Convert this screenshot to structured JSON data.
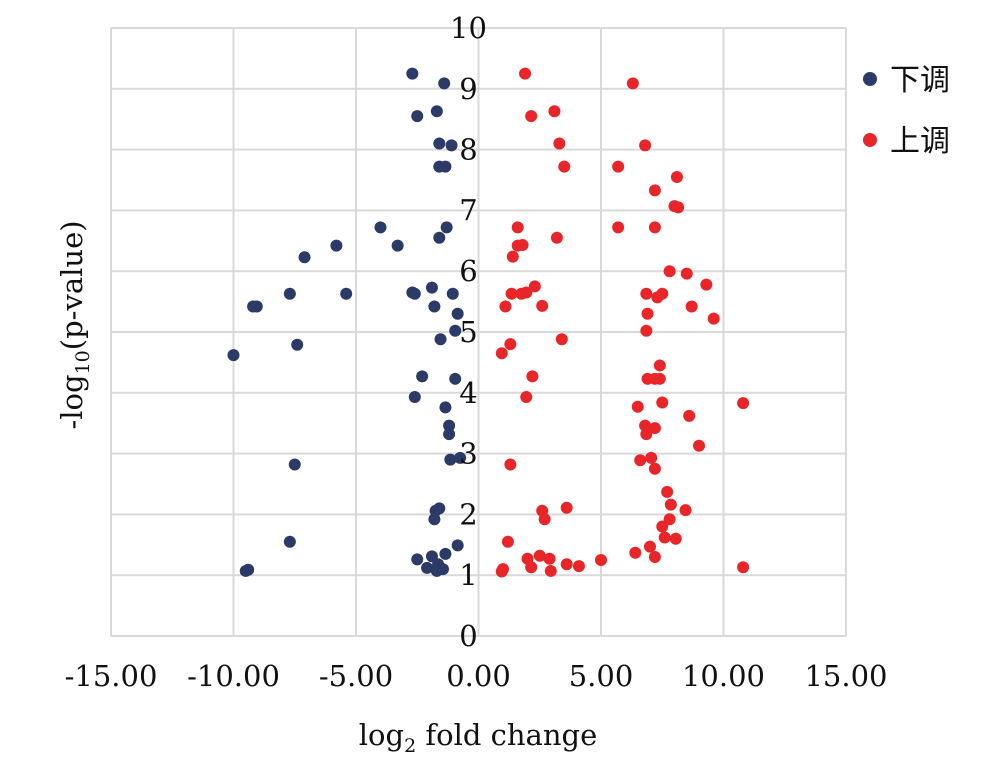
{
  "chart_data": {
    "type": "scatter",
    "title": "",
    "xlabel_main": "log",
    "xlabel_sub": "2",
    "xlabel_rest": " fold change",
    "ylabel_main": "-log",
    "ylabel_sub": "10",
    "ylabel_rest": "(p-value)",
    "xlim": [
      -15,
      15
    ],
    "ylim": [
      0,
      10
    ],
    "xticks": [
      "-15.00",
      "-10.00",
      "-5.00",
      "0.00",
      "5.00",
      "10.00",
      "15.00"
    ],
    "xtick_values": [
      -15,
      -10,
      -5,
      0,
      5,
      10,
      15
    ],
    "yticks": [
      "0",
      "1",
      "2",
      "3",
      "4",
      "5",
      "6",
      "7",
      "8",
      "9",
      "10"
    ],
    "ytick_values": [
      0,
      1,
      2,
      3,
      4,
      5,
      6,
      7,
      8,
      9,
      10
    ],
    "grid": true,
    "legend_position": "right",
    "series": [
      {
        "name": "下调",
        "color": "#2b3a67",
        "points": [
          [
            -2.7,
            9.25
          ],
          [
            -1.4,
            9.09
          ],
          [
            -1.7,
            8.63
          ],
          [
            -2.5,
            8.55
          ],
          [
            -1.6,
            8.1
          ],
          [
            -1.1,
            8.07
          ],
          [
            -1.6,
            7.72
          ],
          [
            -1.35,
            7.72
          ],
          [
            -4.0,
            6.72
          ],
          [
            -1.3,
            6.72
          ],
          [
            -1.6,
            6.55
          ],
          [
            -5.8,
            6.42
          ],
          [
            -3.3,
            6.42
          ],
          [
            -7.1,
            6.23
          ],
          [
            -7.7,
            5.63
          ],
          [
            -5.4,
            5.63
          ],
          [
            -2.7,
            5.65
          ],
          [
            -2.6,
            5.63
          ],
          [
            -1.9,
            5.73
          ],
          [
            -1.05,
            5.63
          ],
          [
            -9.2,
            5.42
          ],
          [
            -9.05,
            5.42
          ],
          [
            -1.8,
            5.42
          ],
          [
            -0.85,
            5.3
          ],
          [
            -0.95,
            5.02
          ],
          [
            -1.55,
            4.88
          ],
          [
            -10.0,
            4.62
          ],
          [
            -7.4,
            4.79
          ],
          [
            -2.3,
            4.27
          ],
          [
            -0.95,
            4.23
          ],
          [
            -2.6,
            3.93
          ],
          [
            -1.35,
            3.76
          ],
          [
            -1.2,
            3.46
          ],
          [
            -1.2,
            3.32
          ],
          [
            -1.15,
            2.9
          ],
          [
            -0.75,
            2.93
          ],
          [
            -7.5,
            2.82
          ],
          [
            -1.75,
            2.06
          ],
          [
            -1.6,
            2.1
          ],
          [
            -1.8,
            1.92
          ],
          [
            -7.7,
            1.55
          ],
          [
            -0.85,
            1.49
          ],
          [
            -2.5,
            1.26
          ],
          [
            -1.9,
            1.31
          ],
          [
            -1.35,
            1.35
          ],
          [
            -1.65,
            1.18
          ],
          [
            -2.1,
            1.12
          ],
          [
            -1.45,
            1.1
          ],
          [
            -1.7,
            1.07
          ],
          [
            -9.4,
            1.09
          ],
          [
            -9.5,
            1.07
          ]
        ]
      },
      {
        "name": "上调",
        "color": "#e8262a",
        "points": [
          [
            1.9,
            9.25
          ],
          [
            6.3,
            9.09
          ],
          [
            3.1,
            8.63
          ],
          [
            2.15,
            8.55
          ],
          [
            3.3,
            8.1
          ],
          [
            6.8,
            8.07
          ],
          [
            3.5,
            7.72
          ],
          [
            5.7,
            7.72
          ],
          [
            8.1,
            7.55
          ],
          [
            7.2,
            7.33
          ],
          [
            8.0,
            7.07
          ],
          [
            8.15,
            7.05
          ],
          [
            5.7,
            6.72
          ],
          [
            1.6,
            6.72
          ],
          [
            7.2,
            6.72
          ],
          [
            3.2,
            6.55
          ],
          [
            1.6,
            6.42
          ],
          [
            1.8,
            6.43
          ],
          [
            1.4,
            6.24
          ],
          [
            7.8,
            6.0
          ],
          [
            8.5,
            5.96
          ],
          [
            9.3,
            5.78
          ],
          [
            2.3,
            5.75
          ],
          [
            1.35,
            5.63
          ],
          [
            1.75,
            5.63
          ],
          [
            1.95,
            5.65
          ],
          [
            6.85,
            5.63
          ],
          [
            7.5,
            5.63
          ],
          [
            7.3,
            5.57
          ],
          [
            1.1,
            5.42
          ],
          [
            2.6,
            5.43
          ],
          [
            8.7,
            5.42
          ],
          [
            6.9,
            5.3
          ],
          [
            9.6,
            5.22
          ],
          [
            6.85,
            5.02
          ],
          [
            3.4,
            4.88
          ],
          [
            1.3,
            4.8
          ],
          [
            0.95,
            4.65
          ],
          [
            7.4,
            4.45
          ],
          [
            2.2,
            4.27
          ],
          [
            6.9,
            4.23
          ],
          [
            7.2,
            4.23
          ],
          [
            7.4,
            4.23
          ],
          [
            1.95,
            3.93
          ],
          [
            10.8,
            3.83
          ],
          [
            7.5,
            3.84
          ],
          [
            6.5,
            3.77
          ],
          [
            8.6,
            3.62
          ],
          [
            6.8,
            3.46
          ],
          [
            7.2,
            3.42
          ],
          [
            6.85,
            3.32
          ],
          [
            9.0,
            3.13
          ],
          [
            6.6,
            2.89
          ],
          [
            7.05,
            2.93
          ],
          [
            7.2,
            2.75
          ],
          [
            1.3,
            2.82
          ],
          [
            7.7,
            2.37
          ],
          [
            7.85,
            2.16
          ],
          [
            8.45,
            2.07
          ],
          [
            2.6,
            2.06
          ],
          [
            3.6,
            2.11
          ],
          [
            2.7,
            1.92
          ],
          [
            7.8,
            1.92
          ],
          [
            7.5,
            1.8
          ],
          [
            7.6,
            1.62
          ],
          [
            8.05,
            1.6
          ],
          [
            1.2,
            1.55
          ],
          [
            7.0,
            1.47
          ],
          [
            6.4,
            1.37
          ],
          [
            7.2,
            1.3
          ],
          [
            2.5,
            1.32
          ],
          [
            2.0,
            1.27
          ],
          [
            2.9,
            1.27
          ],
          [
            5.0,
            1.25
          ],
          [
            3.6,
            1.18
          ],
          [
            2.15,
            1.13
          ],
          [
            1.0,
            1.1
          ],
          [
            4.1,
            1.15
          ],
          [
            10.8,
            1.13
          ],
          [
            0.95,
            1.06
          ],
          [
            2.95,
            1.07
          ]
        ]
      }
    ]
  }
}
